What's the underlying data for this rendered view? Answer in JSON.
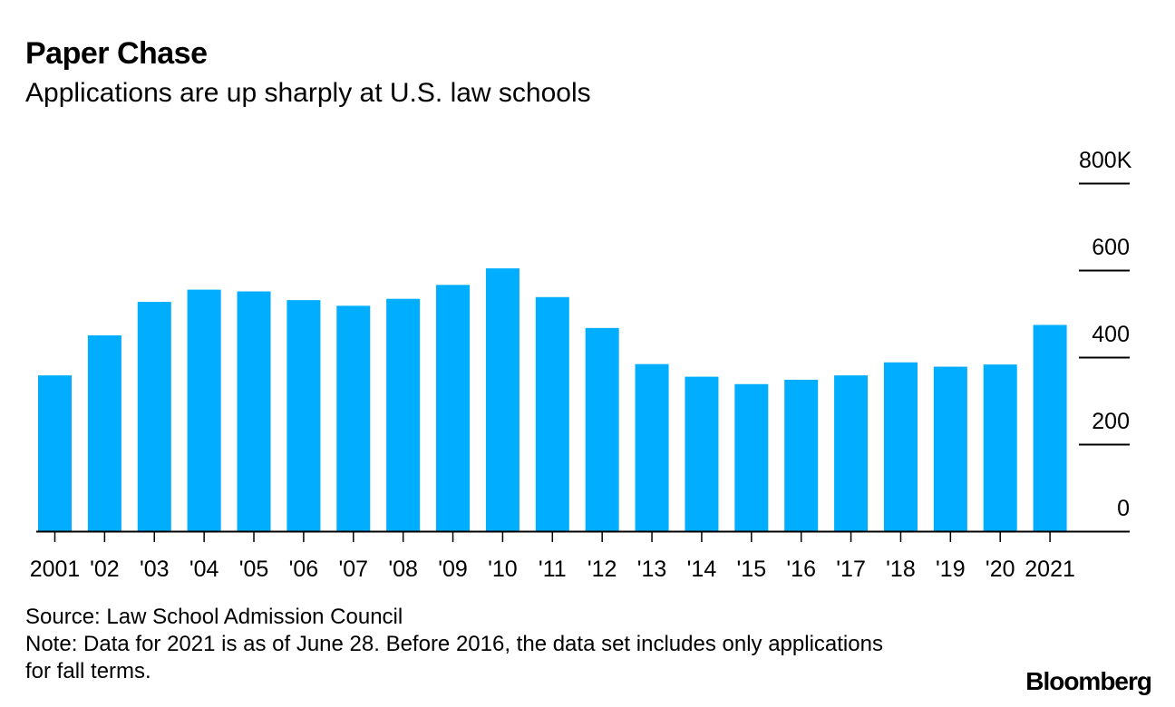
{
  "title": "Paper Chase",
  "subtitle": "Applications are up sharply at U.S. law schools",
  "source": "Source: Law School Admission Council",
  "note": "Note: Data for 2021 is as of June 28. Before 2016, the data set includes only applications for fall terms.",
  "brand": "Bloomberg",
  "colors": {
    "bar": "#00adfe",
    "axis": "#000000"
  },
  "chart_data": {
    "type": "bar",
    "title": "Paper Chase",
    "subtitle": "Applications are up sharply at U.S. law schools",
    "categories": [
      "2001",
      "'02",
      "'03",
      "'04",
      "'05",
      "'06",
      "'07",
      "'08",
      "'09",
      "'10",
      "'11",
      "'12",
      "'13",
      "'14",
      "'15",
      "'16",
      "'17",
      "'18",
      "'19",
      "'20",
      "2021"
    ],
    "values": [
      358,
      450,
      527,
      555,
      551,
      531,
      518,
      534,
      566,
      604,
      538,
      467,
      384,
      355,
      338,
      348,
      358,
      388,
      378,
      383,
      474
    ],
    "y_ticks": [
      0,
      200,
      400,
      600,
      800
    ],
    "y_tick_labels": [
      "0",
      "200",
      "400",
      "600",
      "800K"
    ],
    "ylim": [
      0,
      800
    ],
    "xlabel": "",
    "ylabel": "",
    "grid": false,
    "legend": "none"
  }
}
